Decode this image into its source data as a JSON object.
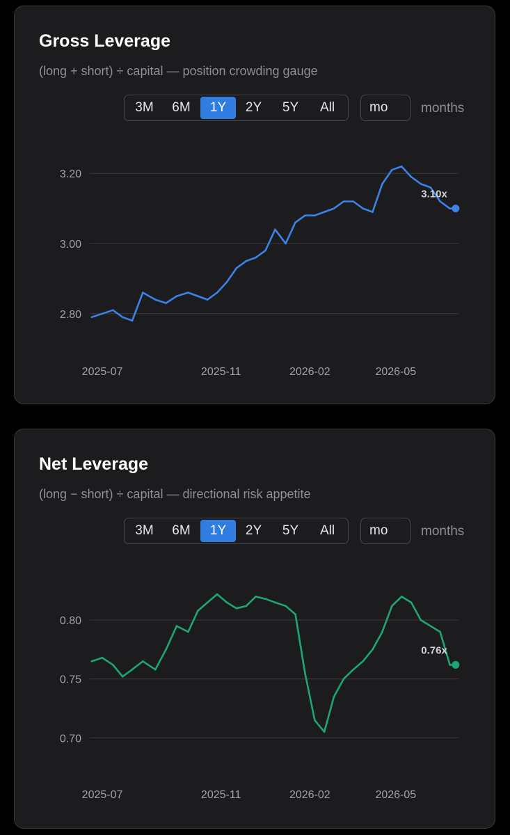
{
  "gross": {
    "title": "Gross Leverage",
    "subtitle": "(long + short) ÷ capital — position crowding gauge",
    "ranges": [
      "3M",
      "6M",
      "1Y",
      "2Y",
      "5Y",
      "All"
    ],
    "active_range": "1Y",
    "unit_value": "mo",
    "unit_label": "months",
    "line_color": "#3b82e6",
    "end_label": "3.10x"
  },
  "net": {
    "title": "Net Leverage",
    "subtitle": "(long − short) ÷ capital — directional risk appetite",
    "ranges": [
      "3M",
      "6M",
      "1Y",
      "2Y",
      "5Y",
      "All"
    ],
    "active_range": "1Y",
    "unit_value": "mo",
    "unit_label": "months",
    "line_color": "#1ea672",
    "end_label": "0.76x"
  },
  "chart_data": [
    {
      "type": "line",
      "title": "Gross Leverage",
      "x_ticks": [
        "2025-07",
        "2025-11",
        "2026-02",
        "2026-05"
      ],
      "y_ticks": [
        "2.80",
        "3.00",
        "3.20"
      ],
      "ylim": [
        2.74,
        3.25
      ],
      "grid": true,
      "series": [
        {
          "x": [
            "2025-06-20",
            "2025-07-01",
            "2025-07-12",
            "2025-07-22",
            "2025-08-01",
            "2025-08-12",
            "2025-08-25",
            "2025-09-05",
            "2025-09-16",
            "2025-09-28",
            "2025-10-08",
            "2025-10-18",
            "2025-10-28",
            "2025-11-07",
            "2025-11-17",
            "2025-11-27",
            "2025-12-07",
            "2025-12-17",
            "2025-12-27",
            "2026-01-07",
            "2026-01-17",
            "2026-01-27",
            "2026-02-06",
            "2026-02-16",
            "2026-02-26",
            "2026-03-08",
            "2026-03-18",
            "2026-03-28",
            "2026-04-07",
            "2026-04-17",
            "2026-04-27",
            "2026-05-07",
            "2026-05-17",
            "2026-05-27",
            "2026-06-06",
            "2026-06-16",
            "2026-06-26",
            "2026-07-02"
          ],
          "values": [
            2.79,
            2.8,
            2.81,
            2.79,
            2.78,
            2.86,
            2.84,
            2.83,
            2.85,
            2.86,
            2.85,
            2.84,
            2.86,
            2.89,
            2.93,
            2.95,
            2.96,
            2.98,
            3.04,
            3.0,
            3.06,
            3.08,
            3.08,
            3.09,
            3.1,
            3.12,
            3.12,
            3.1,
            3.09,
            3.17,
            3.21,
            3.22,
            3.19,
            3.17,
            3.16,
            3.12,
            3.1,
            3.1
          ]
        }
      ]
    },
    {
      "type": "line",
      "title": "Net Leverage",
      "x_ticks": [
        "2025-07",
        "2025-11",
        "2026-02",
        "2026-05"
      ],
      "y_ticks": [
        "0.70",
        "0.75",
        "0.80"
      ],
      "ylim": [
        0.683,
        0.835
      ],
      "grid": true,
      "series": [
        {
          "x": [
            "2025-06-20",
            "2025-07-01",
            "2025-07-12",
            "2025-07-22",
            "2025-08-01",
            "2025-08-12",
            "2025-08-25",
            "2025-09-05",
            "2025-09-16",
            "2025-09-28",
            "2025-10-08",
            "2025-10-18",
            "2025-10-28",
            "2025-11-07",
            "2025-11-17",
            "2025-11-27",
            "2025-12-07",
            "2025-12-17",
            "2025-12-27",
            "2026-01-07",
            "2026-01-17",
            "2026-01-27",
            "2026-02-06",
            "2026-02-16",
            "2026-02-26",
            "2026-03-08",
            "2026-03-18",
            "2026-03-28",
            "2026-04-07",
            "2026-04-17",
            "2026-04-27",
            "2026-05-07",
            "2026-05-17",
            "2026-05-27",
            "2026-06-06",
            "2026-06-16",
            "2026-06-26",
            "2026-07-02"
          ],
          "values": [
            0.765,
            0.768,
            0.762,
            0.752,
            0.758,
            0.765,
            0.758,
            0.775,
            0.795,
            0.79,
            0.808,
            0.815,
            0.822,
            0.815,
            0.81,
            0.812,
            0.82,
            0.818,
            0.815,
            0.812,
            0.805,
            0.755,
            0.715,
            0.705,
            0.735,
            0.75,
            0.758,
            0.765,
            0.775,
            0.79,
            0.812,
            0.82,
            0.815,
            0.8,
            0.795,
            0.79,
            0.762,
            0.762
          ]
        }
      ]
    }
  ]
}
